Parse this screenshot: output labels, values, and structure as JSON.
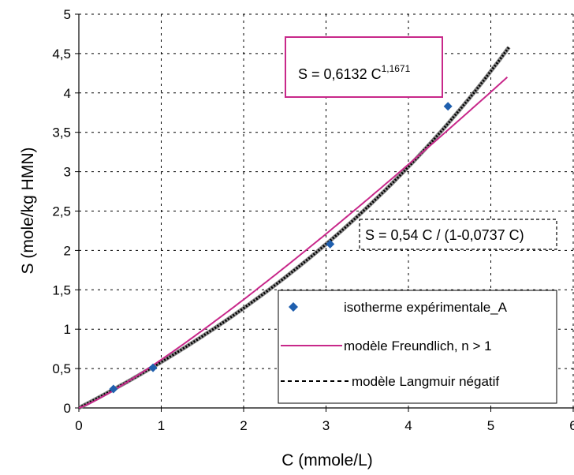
{
  "chart_data": {
    "type": "scatter",
    "xlabel": "C (mmole/L)",
    "ylabel": "S (mole/kg HMN)",
    "xlim": [
      0,
      6
    ],
    "ylim": [
      0,
      5
    ],
    "grid": true,
    "legend_position": "bottom-right",
    "x_ticks": [
      "0",
      "1",
      "2",
      "3",
      "4",
      "5",
      "6"
    ],
    "y_ticks": [
      "0",
      "0,5",
      "1",
      "1,5",
      "2",
      "2,5",
      "3",
      "3,5",
      "4",
      "4,5",
      "5"
    ],
    "series": [
      {
        "name": "isotherme expérimentale_A",
        "kind": "scatter",
        "color": "#1f5fae",
        "x": [
          0.42,
          0.9,
          3.05,
          4.48
        ],
        "y": [
          0.24,
          0.51,
          2.08,
          3.83
        ]
      },
      {
        "name": "modèle Freundlich, n > 1",
        "kind": "line",
        "color": "#c8288a",
        "model": {
          "a": 0.6132,
          "n": 1.1671,
          "x_range": [
            0,
            5.2
          ]
        }
      },
      {
        "name": "modèle Langmuir négatif",
        "kind": "line",
        "color": "#000000",
        "model": {
          "a": 0.54,
          "b": 0.0737,
          "x_range": [
            0,
            5.22
          ]
        }
      }
    ],
    "annotations": [
      {
        "name": "freundlich-equation",
        "base": "S = 0,6132 C",
        "superscript": "1,1671",
        "color": "#c8288a",
        "border": "solid"
      },
      {
        "name": "langmuir-equation",
        "text": "S = 0,54 C / (1-0,0737 C)",
        "color": "#000000",
        "border": "dashed"
      }
    ]
  }
}
